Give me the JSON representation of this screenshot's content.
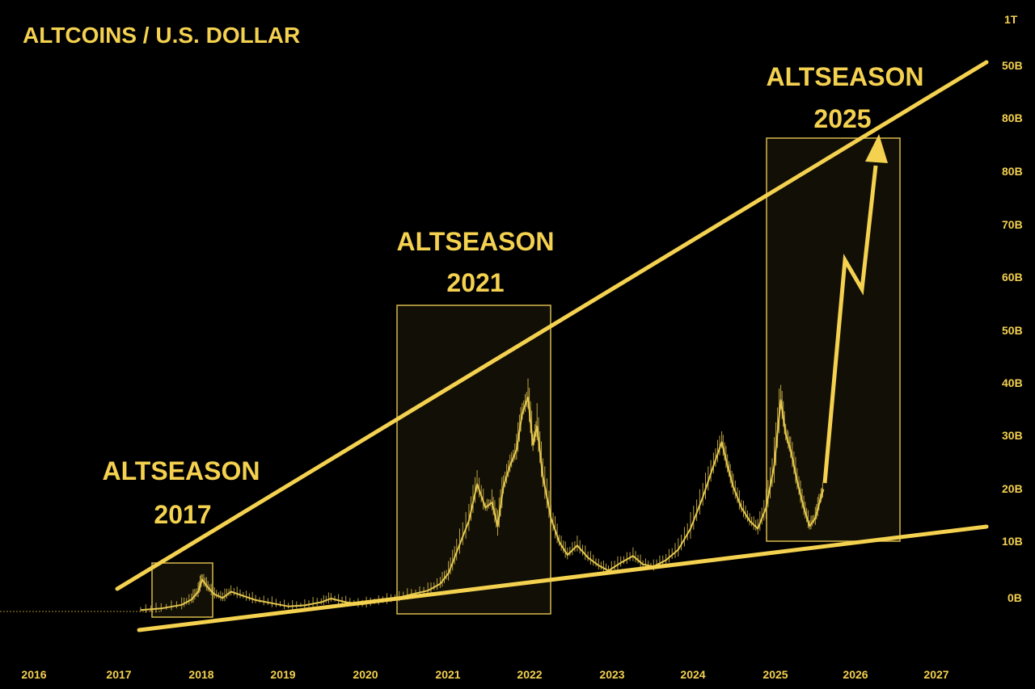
{
  "chart_data": {
    "type": "line",
    "title": "ALTCOINS / U.S. DOLLAR",
    "xlabel": "",
    "ylabel": "",
    "x_ticks": [
      "2016",
      "2017",
      "2018",
      "2019",
      "2020",
      "2021",
      "2022",
      "2023",
      "2024",
      "2025",
      "2026",
      "2027"
    ],
    "y_ticks": [
      "1T",
      "50B",
      "80B",
      "80B",
      "70B",
      "60B",
      "50B",
      "40B",
      "30B",
      "20B",
      "10B",
      "0B"
    ],
    "grid": false,
    "series": [
      {
        "x": [
          2017.3,
          2017.55,
          2017.8,
          2017.92,
          2018.0,
          2018.05,
          2018.12,
          2018.2,
          2018.3,
          2018.4,
          2018.55,
          2018.7,
          2018.9,
          2019.1,
          2019.3,
          2019.5,
          2019.62,
          2019.8,
          2020.0,
          2020.2,
          2020.4,
          2020.6,
          2020.8,
          2020.95,
          2021.05,
          2021.15,
          2021.3,
          2021.4,
          2021.5,
          2021.58,
          2021.65,
          2021.72,
          2021.8,
          2021.88,
          2021.95,
          2022.02,
          2022.08,
          2022.13,
          2022.2,
          2022.3,
          2022.4,
          2022.5,
          2022.62,
          2022.75,
          2022.88,
          2023.0,
          2023.15,
          2023.3,
          2023.42,
          2023.55,
          2023.7,
          2023.85,
          2024.0,
          2024.15,
          2024.28,
          2024.38,
          2024.45,
          2024.52,
          2024.62,
          2024.72,
          2024.82,
          2024.92,
          2025.02,
          2025.1,
          2025.16,
          2025.22,
          2025.3,
          2025.38,
          2025.45,
          2025.52,
          2025.58,
          2025.62
        ],
        "values": [
          -2.5,
          -2.2,
          -1.5,
          -0.5,
          1.0,
          3.3,
          1.8,
          0.5,
          -0.2,
          1.0,
          0.2,
          -0.6,
          -1.2,
          -1.8,
          -1.6,
          -1.0,
          -0.3,
          -1.0,
          -1.4,
          -0.8,
          -0.3,
          0.5,
          1.2,
          2.5,
          4.5,
          8.5,
          14.5,
          21.5,
          17.0,
          18.0,
          13.5,
          21.0,
          25.0,
          28.0,
          35.0,
          38.0,
          29.0,
          32.5,
          23.0,
          15.0,
          10.5,
          8.0,
          9.8,
          7.5,
          6.0,
          5.0,
          6.5,
          7.8,
          6.2,
          5.8,
          7.0,
          9.0,
          13.0,
          19.0,
          25.0,
          29.5,
          25.0,
          21.0,
          17.0,
          14.5,
          13.0,
          17.0,
          25.0,
          37.5,
          31.0,
          28.0,
          22.0,
          17.0,
          13.5,
          15.0,
          18.5,
          20.5
        ]
      }
    ],
    "annotations": [
      {
        "lines": [
          "ALTSEASON",
          "2017"
        ]
      },
      {
        "lines": [
          "ALTSEASON",
          "2021"
        ]
      },
      {
        "lines": [
          "ALTSEASON",
          "2025"
        ]
      }
    ],
    "colors": {
      "background": "#000000",
      "accent": "#f4d14f",
      "price": "#e6c84f"
    }
  }
}
